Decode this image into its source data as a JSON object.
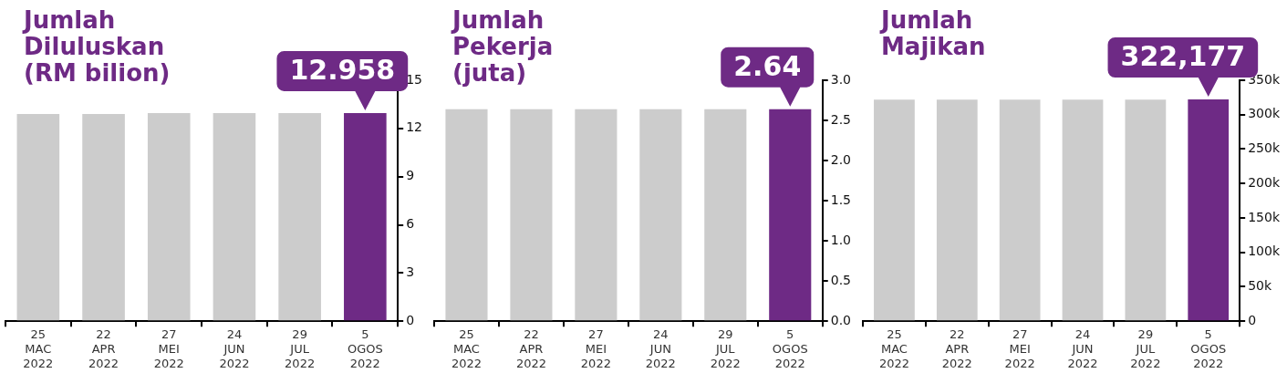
{
  "chart_data": [
    {
      "type": "bar",
      "title": "Jumlah\nDiluluskan\n(RM bilion)",
      "categories": [
        "25\nMAC\n2022",
        "22\nAPR\n2022",
        "27\nMEI\n2022",
        "24\nJUN\n2022",
        "29\nJUL\n2022",
        "5\nOGOS\n2022"
      ],
      "values": [
        12.9,
        12.9,
        12.95,
        12.95,
        12.95,
        12.958
      ],
      "colors": [
        "#cccccc",
        "#cccccc",
        "#cccccc",
        "#cccccc",
        "#cccccc",
        "#6e2a85"
      ],
      "value_labels": [
        null,
        null,
        null,
        null,
        null,
        "12.958"
      ],
      "ylim": [
        0,
        15
      ],
      "yticks": [
        0,
        3,
        6,
        9,
        12,
        15
      ],
      "grid": false,
      "legend": false
    },
    {
      "type": "bar",
      "title": "Jumlah\nPekerja\n(juta)",
      "categories": [
        "25\nMAC\n2022",
        "22\nAPR\n2022",
        "27\nMEI\n2022",
        "24\nJUN\n2022",
        "29\nJUL\n2022",
        "5\nOGOS\n2022"
      ],
      "values": [
        2.64,
        2.64,
        2.64,
        2.64,
        2.64,
        2.64
      ],
      "colors": [
        "#cccccc",
        "#cccccc",
        "#cccccc",
        "#cccccc",
        "#cccccc",
        "#6e2a85"
      ],
      "value_labels": [
        null,
        null,
        null,
        null,
        null,
        "2.64"
      ],
      "ylim": [
        0,
        3
      ],
      "yticks": [
        {
          "value": 0,
          "label": "0.0"
        },
        {
          "value": 0.5,
          "label": "0.5"
        },
        {
          "value": 1,
          "label": "1.0"
        },
        {
          "value": 1.5,
          "label": "1.5"
        },
        {
          "value": 2,
          "label": "2.0"
        },
        {
          "value": 2.5,
          "label": "2.5"
        },
        {
          "value": 3,
          "label": "3.0"
        }
      ],
      "grid": false,
      "legend": false
    },
    {
      "type": "bar",
      "title": "Jumlah\nMajikan",
      "categories": [
        "25\nMAC\n2022",
        "22\nAPR\n2022",
        "27\nMEI\n2022",
        "24\nJUN\n2022",
        "29\nJUL\n2022",
        "5\nOGOS\n2022"
      ],
      "values": [
        322000,
        322000,
        322000,
        322000,
        322000,
        322177
      ],
      "colors": [
        "#cccccc",
        "#cccccc",
        "#cccccc",
        "#cccccc",
        "#cccccc",
        "#6e2a85"
      ],
      "value_labels": [
        null,
        null,
        null,
        null,
        null,
        "322,177"
      ],
      "ylim": [
        0,
        350000
      ],
      "yticks": [
        {
          "value": 0,
          "label": "0"
        },
        {
          "value": 50000,
          "label": "50k"
        },
        {
          "value": 100000,
          "label": "100k"
        },
        {
          "value": 150000,
          "label": "150k"
        },
        {
          "value": 200000,
          "label": "200k"
        },
        {
          "value": 250000,
          "label": "250k"
        },
        {
          "value": 300000,
          "label": "300k"
        },
        {
          "value": 350000,
          "label": "350k"
        }
      ],
      "grid": false,
      "legend": false
    }
  ]
}
